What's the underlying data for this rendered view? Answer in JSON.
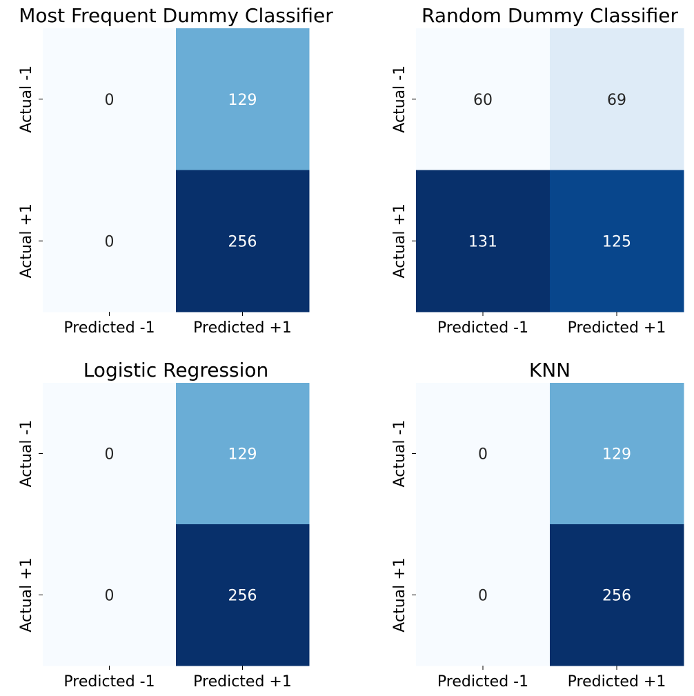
{
  "chart_data": [
    {
      "type": "heatmap",
      "title": "Most Frequent Dummy Classifier",
      "x_ticks": [
        "Predicted -1",
        "Predicted +1"
      ],
      "y_ticks": [
        "Actual -1",
        "Actual +1"
      ],
      "values": [
        [
          0,
          129
        ],
        [
          0,
          256
        ]
      ],
      "colormap": "Blues",
      "colorbar": false
    },
    {
      "type": "heatmap",
      "title": "Random Dummy Classifier",
      "x_ticks": [
        "Predicted -1",
        "Predicted +1"
      ],
      "y_ticks": [
        "Actual -1",
        "Actual +1"
      ],
      "values": [
        [
          60,
          69
        ],
        [
          131,
          125
        ]
      ],
      "colormap": "Blues",
      "colorbar": false
    },
    {
      "type": "heatmap",
      "title": "Logistic Regression",
      "x_ticks": [
        "Predicted -1",
        "Predicted +1"
      ],
      "y_ticks": [
        "Actual -1",
        "Actual +1"
      ],
      "values": [
        [
          0,
          129
        ],
        [
          0,
          256
        ]
      ],
      "colormap": "Blues",
      "colorbar": false
    },
    {
      "type": "heatmap",
      "title": "KNN",
      "x_ticks": [
        "Predicted -1",
        "Predicted +1"
      ],
      "y_ticks": [
        "Actual -1",
        "Actual +1"
      ],
      "values": [
        [
          0,
          129
        ],
        [
          0,
          256
        ]
      ],
      "colormap": "Blues",
      "colorbar": false
    }
  ]
}
